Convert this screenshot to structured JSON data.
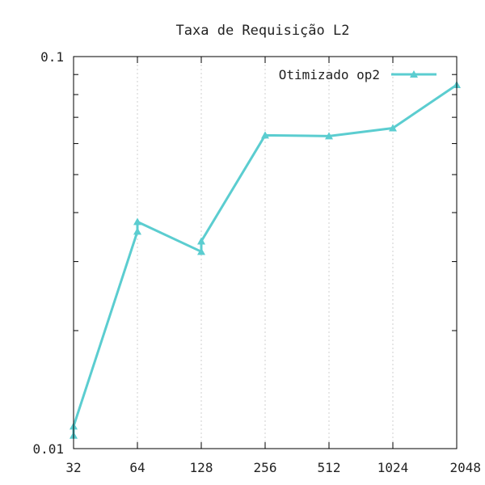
{
  "chart_data": {
    "type": "line",
    "title": "Taxa de Requisição L2",
    "xlabel": "",
    "ylabel": "",
    "x": [
      "32",
      "64",
      "128",
      "256",
      "512",
      "1024",
      "2048"
    ],
    "yscale": "log",
    "ylim": [
      0.01,
      0.1
    ],
    "ytick_labels": [
      "0.01",
      "0.1"
    ],
    "grid": "x",
    "legend_position": "top-right",
    "series": [
      {
        "name": "Otimizado op2",
        "color": "#5bcdd0",
        "marker": "triangle",
        "points": [
          {
            "x": "32",
            "y": 0.0108
          },
          {
            "x": "32",
            "y": 0.0114
          },
          {
            "x": "64",
            "y": 0.0358
          },
          {
            "x": "64",
            "y": 0.0379
          },
          {
            "x": "128",
            "y": 0.0318
          },
          {
            "x": "128",
            "y": 0.0338
          },
          {
            "x": "256",
            "y": 0.063
          },
          {
            "x": "512",
            "y": 0.0627
          },
          {
            "x": "1024",
            "y": 0.0657
          },
          {
            "x": "2048",
            "y": 0.0847
          }
        ]
      }
    ]
  }
}
